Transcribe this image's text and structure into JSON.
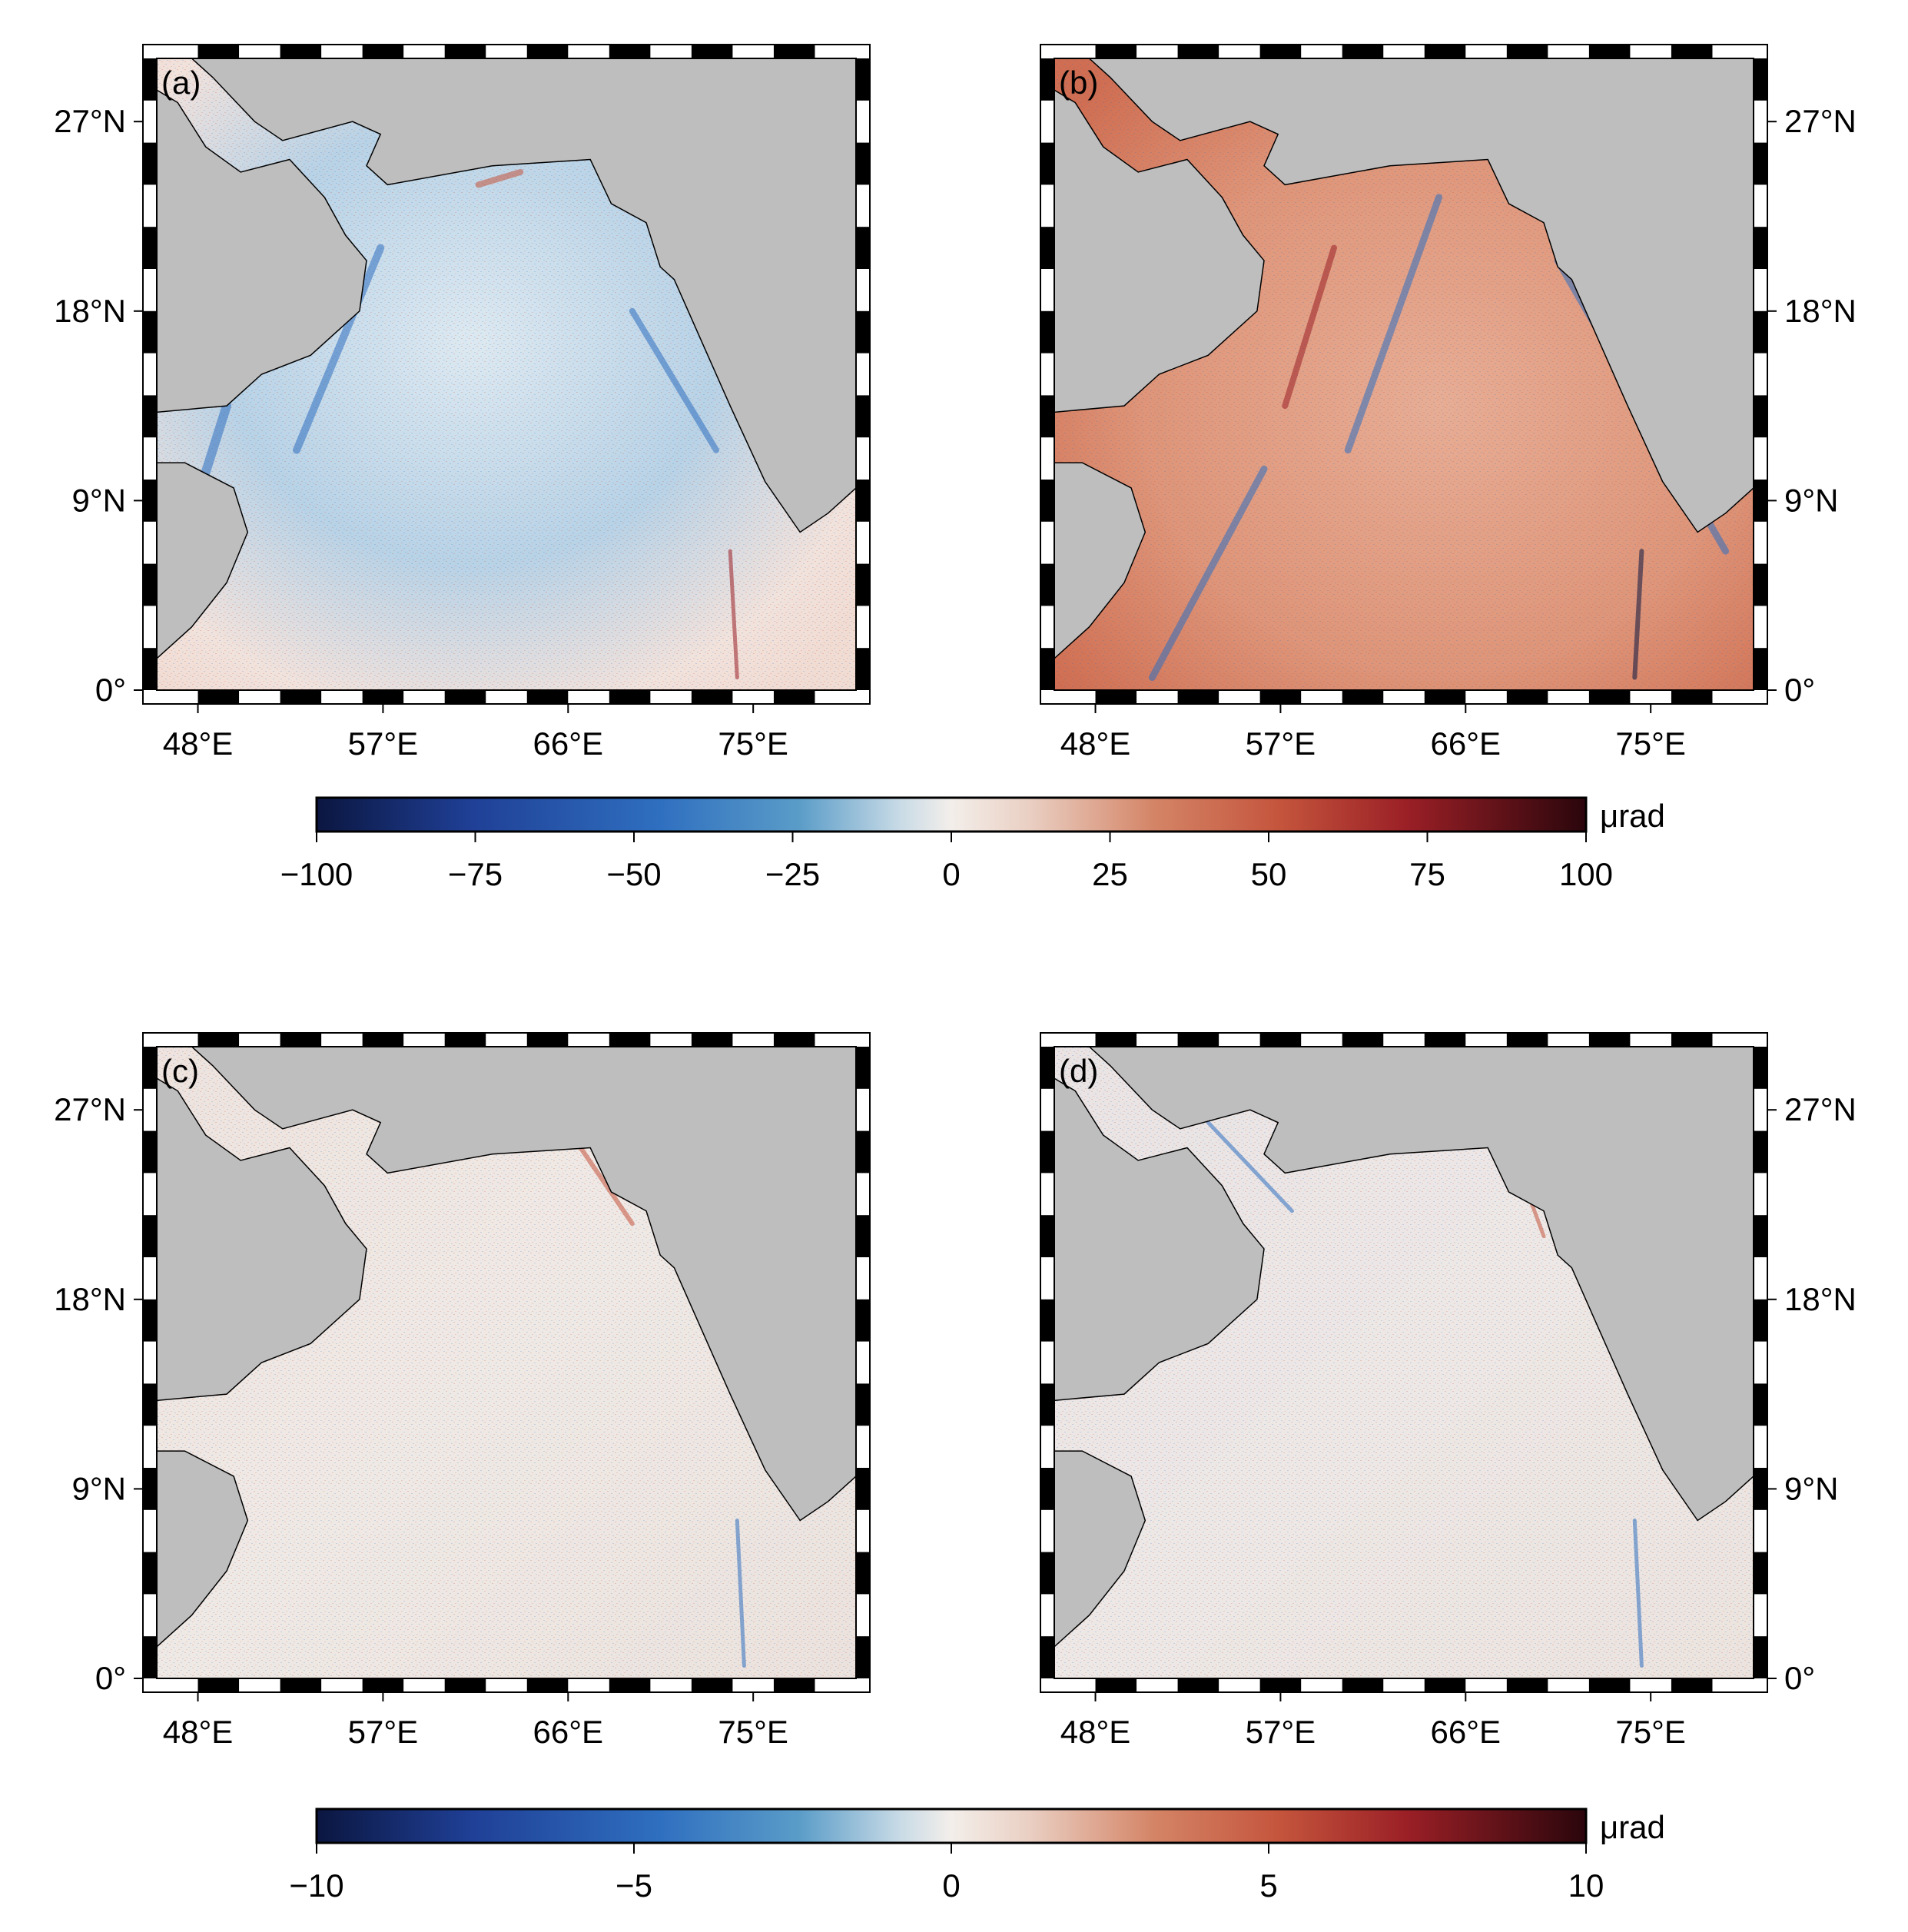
{
  "panels": [
    {
      "id": "a",
      "label": "(a)",
      "field": "a"
    },
    {
      "id": "b",
      "label": "(b)",
      "field": "b"
    },
    {
      "id": "c",
      "label": "(c)",
      "field": "c"
    },
    {
      "id": "d",
      "label": "(d)",
      "field": "d"
    }
  ],
  "axes": {
    "lon_labels": [
      "48°E",
      "57°E",
      "66°E",
      "75°E"
    ],
    "lat_labels": [
      "0°",
      "9°N",
      "18°N",
      "27°N"
    ],
    "lon_range": [
      46,
      80
    ],
    "lat_range": [
      0,
      30
    ]
  },
  "colorbars": [
    {
      "unit": "μrad",
      "range": [
        -100,
        100
      ],
      "ticks": [
        "−100",
        "−75",
        "−50",
        "−25",
        "0",
        "25",
        "50",
        "75",
        "100"
      ]
    },
    {
      "unit": "μrad",
      "range": [
        -10,
        10
      ],
      "ticks": [
        "−10",
        "−5",
        "0",
        "5",
        "10"
      ]
    }
  ],
  "colors": {
    "land": "#bebebe",
    "neg_dark": "#0b1640",
    "neg_mid": "#2f6fc0",
    "neutral": "#f3eeea",
    "pos_mid": "#c4543c",
    "pos_dark": "#2a060c"
  }
}
